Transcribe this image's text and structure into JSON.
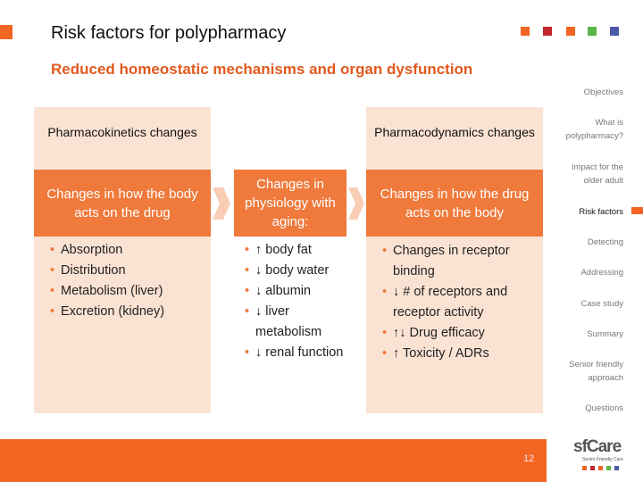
{
  "header": {
    "title": "Risk factors for polypharmacy",
    "subtitle": "Reduced homeostatic mechanisms and organ dysfunction"
  },
  "nav": {
    "items": [
      "Objectives",
      "What is polypharmacy?",
      "Impact for the older adult",
      "Risk factors",
      "Detecting",
      "Addressing",
      "Case study",
      "Summary",
      "Senior friendly approach",
      "Questions"
    ]
  },
  "panels": [
    {
      "title": "Pharmacokinetics changes",
      "band": "Changes in how the body acts on the drug",
      "bullets": [
        "Absorption",
        "Distribution",
        "Metabolism (liver)",
        "Excretion (kidney)"
      ]
    },
    {
      "band": "Changes in physiology with aging:",
      "bullets": [
        "↑ body fat",
        "↓ body water",
        "↓ albumin",
        "↓ liver metabolism",
        "↓ renal function"
      ]
    },
    {
      "title": "Pharmacodynamics changes",
      "band": "Changes in how the drug acts on the body",
      "bullets": [
        "Changes in receptor binding",
        "↓ # of receptors and receptor activity",
        "↑↓ Drug efficacy",
        "↑ Toxicity / ADRs"
      ]
    }
  ],
  "footer": {
    "page": 12,
    "logo": "sfCare",
    "tagline": "Senior Friendly Care"
  }
}
